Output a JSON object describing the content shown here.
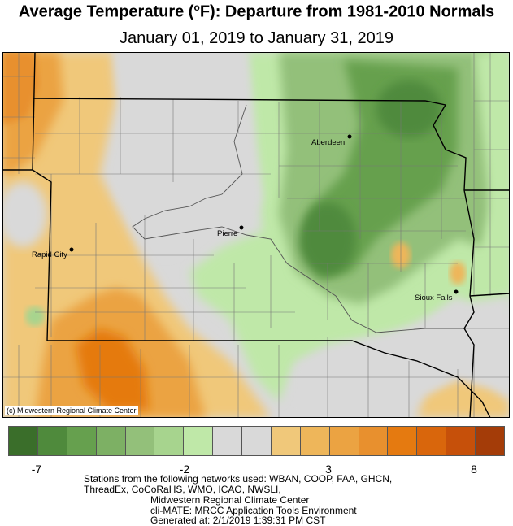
{
  "title": {
    "prefix": "Average Temperature (",
    "degree": "o",
    "suffix": "F): Departure from 1981-2010 Normals"
  },
  "subtitle": "January 01, 2019 to January 31, 2019",
  "credit": "(c) Midwestern Regional Climate Center",
  "cities": [
    {
      "name": "Aberdeen"
    },
    {
      "name": "Pierre"
    },
    {
      "name": "Rapid City"
    },
    {
      "name": "Sioux Falls"
    }
  ],
  "legend": {
    "colors": [
      "#3a6e2a",
      "#4f8a3c",
      "#66a04e",
      "#7db064",
      "#93c07a",
      "#a7d48e",
      "#bfe8a8",
      "#d9d9d9",
      "#d9d9d9",
      "#f0c87a",
      "#eeb65a",
      "#eba342",
      "#e8902e",
      "#e57a10",
      "#d9660c",
      "#c6500a",
      "#a43c08"
    ],
    "ticks": [
      "-7",
      "-2",
      "3",
      "8"
    ]
  },
  "footer": {
    "line1": "Stations from the following networks used: WBAN, COOP, FAA, GHCN,",
    "line2": "ThreadEx, CoCoRaHS, WMO, ICAO, NWSLI,",
    "line3": "Midwestern Regional Climate Center",
    "line4": "cli-MATE: MRCC Application Tools Environment",
    "line5": "Generated at: 2/1/2019 1:39:31 PM CST"
  }
}
